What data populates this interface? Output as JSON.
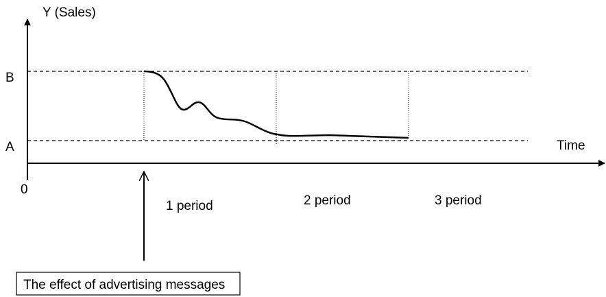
{
  "axis": {
    "y_label": "Y (Sales)",
    "x_label": "Time",
    "origin": "0"
  },
  "levels": {
    "b": "B",
    "a": "A"
  },
  "periods": [
    "1 period",
    "2 period",
    "3 period"
  ],
  "annotation": "The effect of advertising messages"
}
